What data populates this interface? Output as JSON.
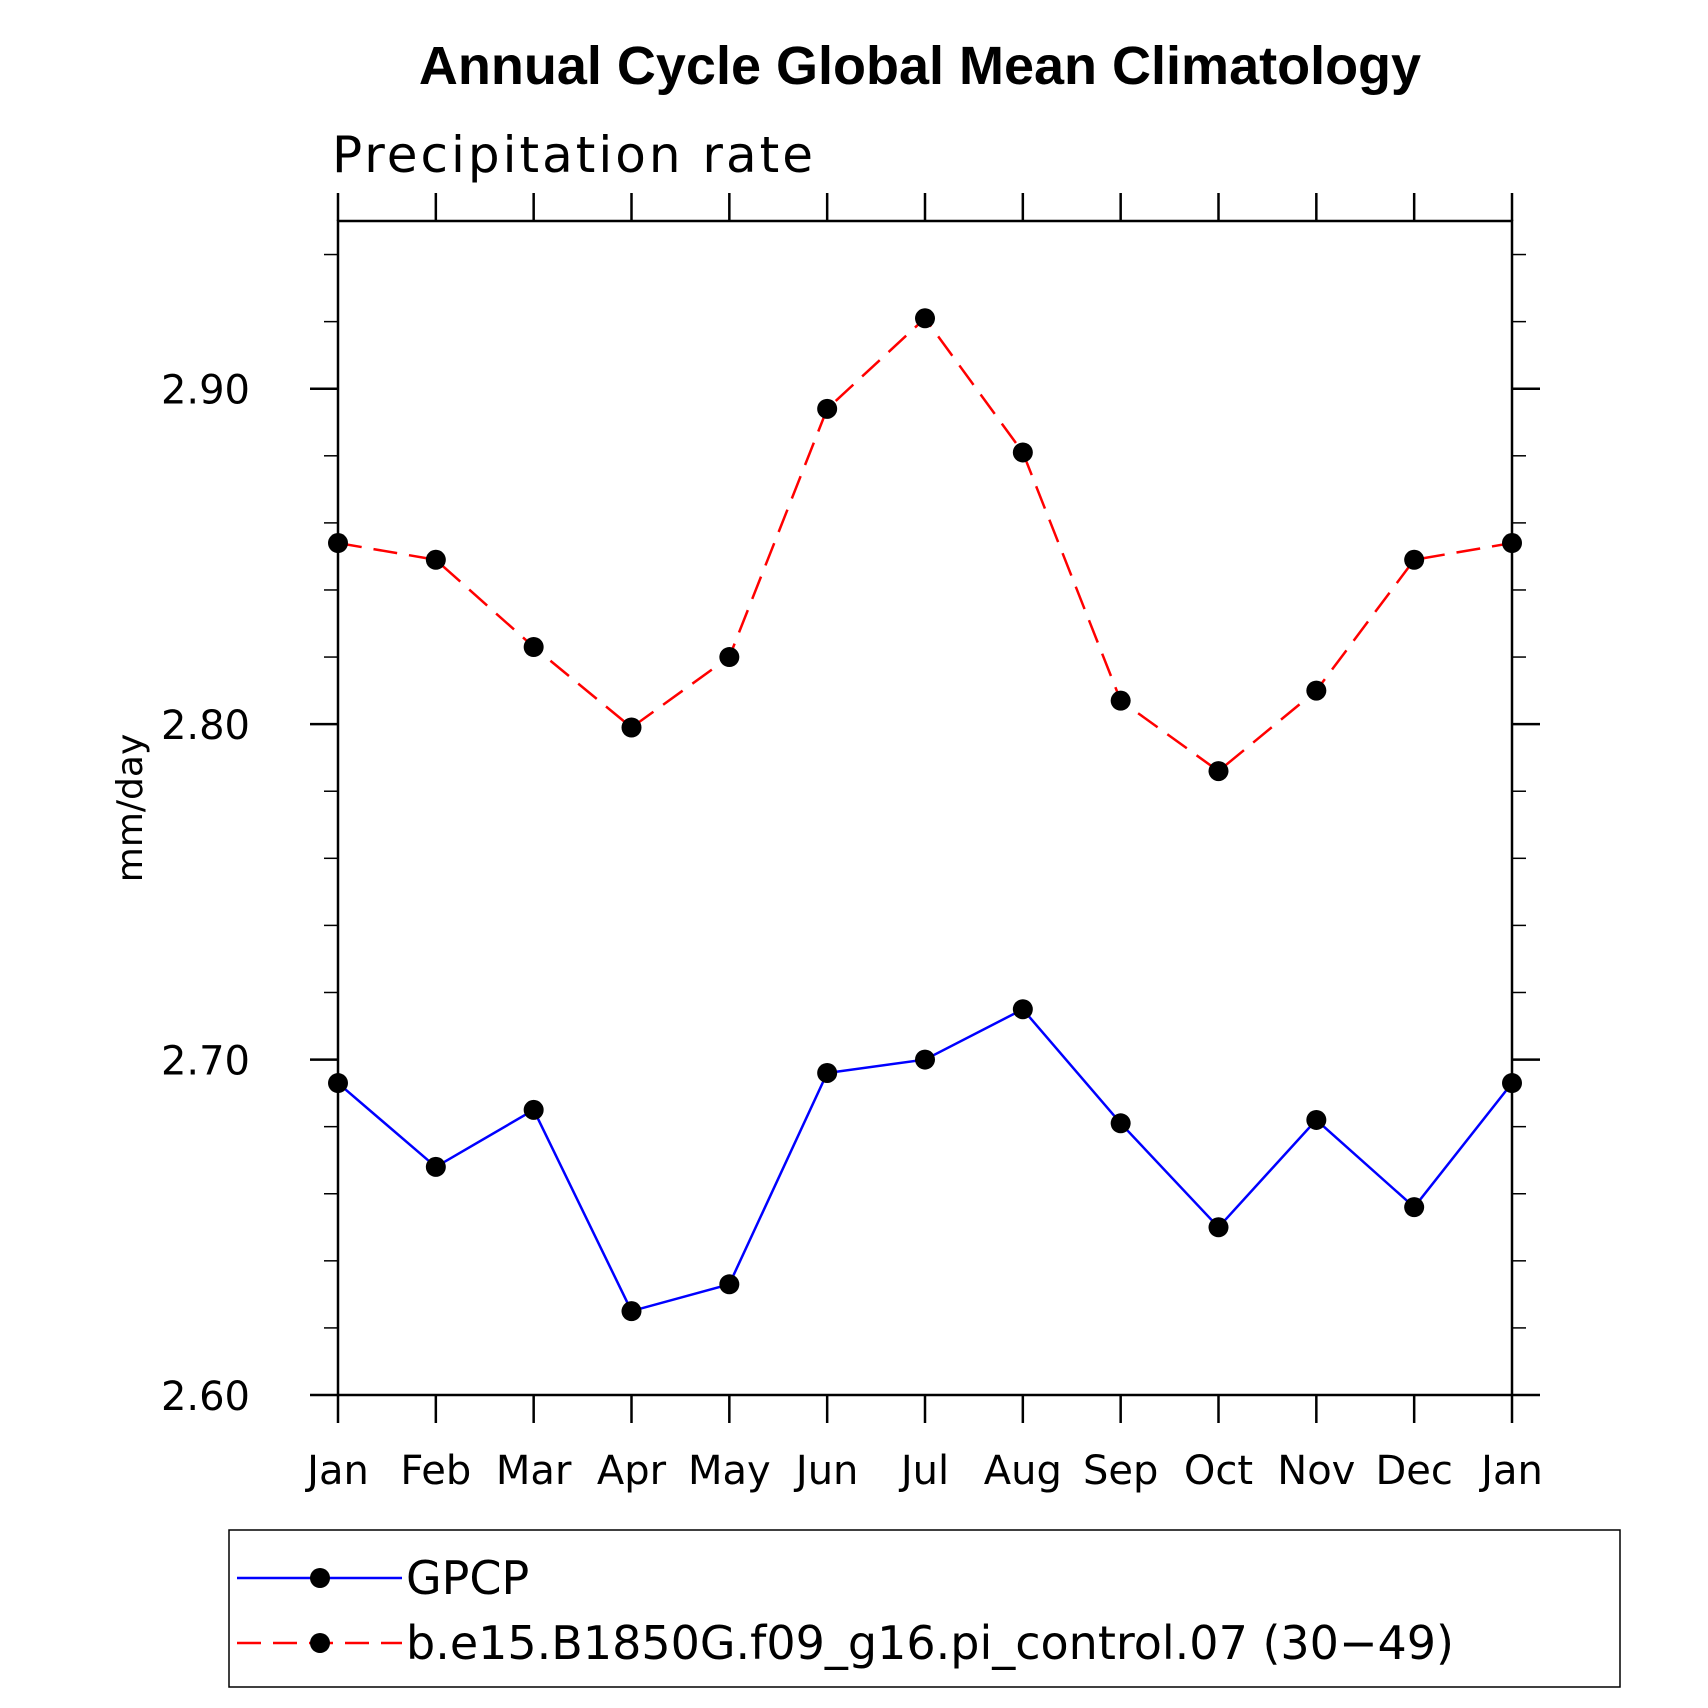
{
  "chart_data": {
    "type": "line",
    "title": "Annual Cycle Global Mean Climatology",
    "subtitle": "Precipitation rate",
    "xlabel": "",
    "ylabel": "mm/day",
    "categories": [
      "Jan",
      "Feb",
      "Mar",
      "Apr",
      "May",
      "Jun",
      "Jul",
      "Aug",
      "Sep",
      "Oct",
      "Nov",
      "Dec",
      "Jan"
    ],
    "ylim": [
      2.6,
      2.95
    ],
    "yticks": [
      2.6,
      2.7,
      2.8,
      2.9
    ],
    "ytick_labels": [
      "2.60",
      "2.70",
      "2.80",
      "2.90"
    ],
    "grid": false,
    "legend_position": "bottom",
    "series": [
      {
        "name": "GPCP",
        "color": "#0000ff",
        "line_style": "solid",
        "marker": "filled-circle",
        "values": [
          2.693,
          2.668,
          2.685,
          2.625,
          2.633,
          2.696,
          2.7,
          2.715,
          2.681,
          2.65,
          2.682,
          2.656,
          2.693
        ]
      },
      {
        "name": "b.e15.B1850G.f09_g16.pi_control.07 (30−49)",
        "color": "#ff0000",
        "line_style": "dashed",
        "marker": "filled-circle",
        "values": [
          2.854,
          2.849,
          2.823,
          2.799,
          2.82,
          2.894,
          2.921,
          2.881,
          2.807,
          2.786,
          2.81,
          2.849,
          2.854
        ]
      }
    ]
  }
}
